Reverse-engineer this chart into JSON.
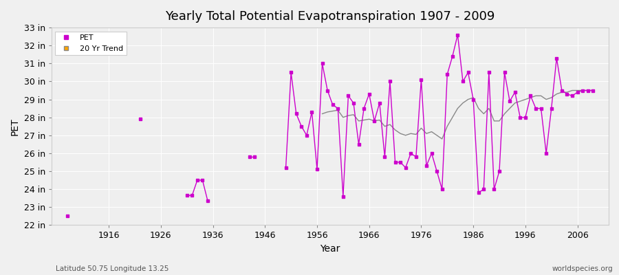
{
  "title": "Yearly Total Potential Evapotranspiration 1907 - 2009",
  "xlabel": "Year",
  "ylabel": "PET",
  "footnote_left": "Latitude 50.75 Longitude 13.25",
  "footnote_right": "worldspecies.org",
  "background_color": "#f0f0f0",
  "plot_bg_color": "#efefef",
  "line_color": "#cc00cc",
  "trend_color": "#888888",
  "xlim": [
    1905,
    2012
  ],
  "ylim": [
    22,
    33
  ],
  "ytick_vals": [
    22,
    23,
    24,
    25,
    26,
    27,
    28,
    29,
    30,
    31,
    32,
    33
  ],
  "ytick_labels": [
    "22 in",
    "23 in",
    "24 in",
    "25 in",
    "26 in",
    "27 in",
    "28 in",
    "29 in",
    "30 in",
    "31 in",
    "32 in",
    "33 in"
  ],
  "xticks": [
    1916,
    1926,
    1936,
    1946,
    1956,
    1966,
    1976,
    1986,
    1996,
    2006
  ],
  "pet_years": [
    1908,
    1922,
    1931,
    1932,
    1933,
    1934,
    1935,
    1943,
    1944,
    1950,
    1951,
    1952,
    1953,
    1954,
    1955,
    1956,
    1957,
    1958,
    1959,
    1960,
    1961,
    1962,
    1963,
    1964,
    1965,
    1966,
    1967,
    1968,
    1969,
    1970,
    1971,
    1972,
    1973,
    1974,
    1975,
    1976,
    1977,
    1978,
    1979,
    1980,
    1981,
    1982,
    1983,
    1984,
    1985,
    1986,
    1987,
    1988,
    1989,
    1990,
    1991,
    1992,
    1993,
    1994,
    1995,
    1996,
    1997,
    1998,
    1999,
    2000,
    2001,
    2002,
    2003,
    2004,
    2005,
    2006,
    2007,
    2008,
    2009
  ],
  "pet_values": [
    22.5,
    27.9,
    23.65,
    23.65,
    24.5,
    24.5,
    23.35,
    25.8,
    25.8,
    25.2,
    30.5,
    28.2,
    27.5,
    27.0,
    28.3,
    25.1,
    31.0,
    29.5,
    28.7,
    28.5,
    23.6,
    29.2,
    28.8,
    26.5,
    28.5,
    29.3,
    27.8,
    28.8,
    25.8,
    30.0,
    25.5,
    25.5,
    25.2,
    26.0,
    25.8,
    30.1,
    25.3,
    26.0,
    25.0,
    24.0,
    30.4,
    31.4,
    32.6,
    30.0,
    30.5,
    29.0,
    23.8,
    24.0,
    30.5,
    24.0,
    25.0,
    30.5,
    28.9,
    29.4,
    28.0,
    28.0,
    29.2,
    28.5,
    28.5,
    26.0,
    28.5,
    31.3,
    29.5,
    29.3,
    29.2,
    29.4,
    29.5,
    29.5,
    29.5
  ],
  "trend_years": [
    1957,
    1958,
    1959,
    1960,
    1961,
    1962,
    1963,
    1964,
    1965,
    1966,
    1967,
    1968,
    1969,
    1970,
    1971,
    1972,
    1973,
    1974,
    1975,
    1976,
    1977,
    1978,
    1979,
    1980,
    1981,
    1982,
    1983,
    1984,
    1985,
    1986,
    1987,
    1988,
    1989,
    1990,
    1991,
    1992,
    1993,
    1994,
    1995,
    1996,
    1997,
    1998,
    1999,
    2000,
    2001,
    2002,
    2003,
    2004,
    2005,
    2006,
    2007,
    2008,
    2009
  ],
  "trend_values": [
    28.2,
    28.3,
    28.35,
    28.4,
    28.0,
    28.1,
    28.15,
    27.8,
    27.85,
    27.9,
    27.8,
    27.85,
    27.5,
    27.6,
    27.3,
    27.1,
    27.0,
    27.1,
    27.05,
    27.4,
    27.1,
    27.2,
    27.0,
    26.8,
    27.5,
    28.0,
    28.5,
    28.8,
    29.0,
    29.1,
    28.5,
    28.2,
    28.5,
    27.8,
    27.8,
    28.2,
    28.5,
    28.8,
    28.9,
    29.0,
    29.1,
    29.2,
    29.2,
    29.0,
    29.1,
    29.3,
    29.4,
    29.4,
    29.5,
    29.5,
    29.5,
    29.5,
    29.5
  ]
}
